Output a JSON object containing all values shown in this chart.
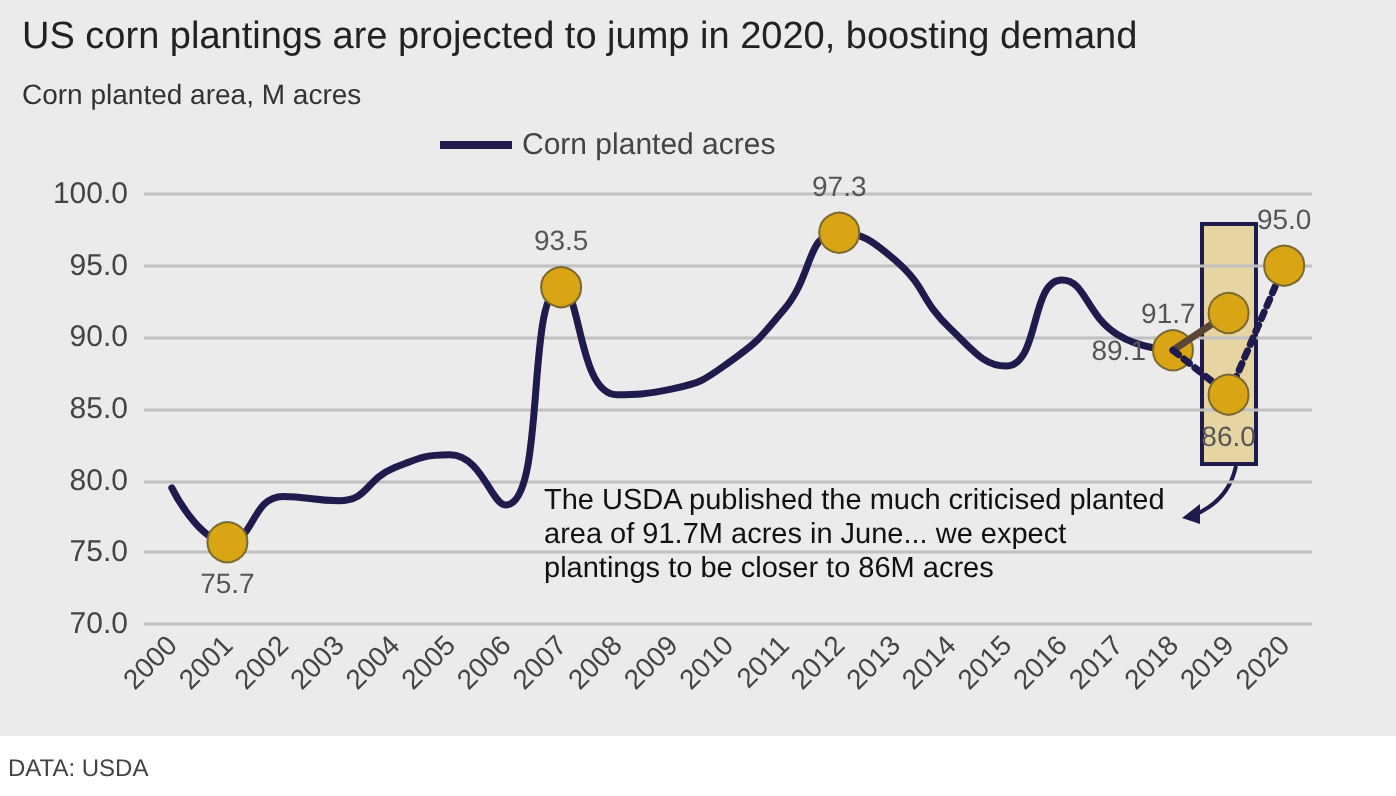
{
  "chart_data": {
    "type": "line",
    "title": "US corn plantings are projected to jump in 2020, boosting demand",
    "subtitle": "Corn planted area, M acres",
    "categories": [
      "2000",
      "2001",
      "2002",
      "2003",
      "2004",
      "2005",
      "2006",
      "2007",
      "2008",
      "2009",
      "2010",
      "2011",
      "2012",
      "2013",
      "2014",
      "2015",
      "2016",
      "2017",
      "2018",
      "2019",
      "2020"
    ],
    "series": [
      {
        "name": "Corn planted acres",
        "color": "#1f1b4d",
        "values": [
          79.5,
          75.7,
          78.9,
          78.6,
          80.9,
          81.8,
          78.3,
          93.5,
          86.0,
          86.4,
          88.2,
          91.9,
          97.3,
          95.4,
          90.6,
          88.0,
          94.0,
          90.2,
          89.1,
          null,
          null
        ],
        "value_labels": [
          null,
          "75.7",
          null,
          null,
          null,
          null,
          null,
          "93.5",
          null,
          null,
          null,
          null,
          "97.3",
          null,
          null,
          null,
          null,
          null,
          "89.1",
          null,
          null
        ]
      },
      {
        "type": "line",
        "color": "#5a4636",
        "marker": "circle",
        "values": [
          null,
          null,
          null,
          null,
          null,
          null,
          null,
          null,
          null,
          null,
          null,
          null,
          null,
          null,
          null,
          null,
          null,
          null,
          89.1,
          91.7,
          null
        ],
        "value_labels": [
          null,
          null,
          null,
          null,
          null,
          null,
          null,
          null,
          null,
          null,
          null,
          null,
          null,
          null,
          null,
          null,
          null,
          null,
          null,
          "91.7",
          null
        ]
      },
      {
        "type": "line",
        "color": "#1f1b4d",
        "line_style": "dotted",
        "marker": "circle",
        "values": [
          null,
          null,
          null,
          null,
          null,
          null,
          null,
          null,
          null,
          null,
          null,
          null,
          null,
          null,
          null,
          null,
          null,
          null,
          89.1,
          86.0,
          95.0
        ],
        "value_labels": [
          null,
          null,
          null,
          null,
          null,
          null,
          null,
          null,
          null,
          null,
          null,
          null,
          null,
          null,
          null,
          null,
          null,
          null,
          null,
          "86.0",
          "95.0"
        ]
      }
    ],
    "ylim": [
      70,
      100
    ],
    "yticks": [
      {
        "value": 70,
        "label": "70.0"
      },
      {
        "value": 75,
        "label": "75.0"
      },
      {
        "value": 80,
        "label": "80.0"
      },
      {
        "value": 85,
        "label": "85.0"
      },
      {
        "value": 90,
        "label": "90.0"
      },
      {
        "value": 95,
        "label": "95.0"
      },
      {
        "value": 100,
        "label": "100.0"
      }
    ],
    "grid": "y",
    "legend": "top",
    "annotations": [
      "The USDA published the much criticised planted area of 91.7M acres in June... we expect plantings to be closer to 86M acres",
      "DATA: USDA"
    ]
  }
}
